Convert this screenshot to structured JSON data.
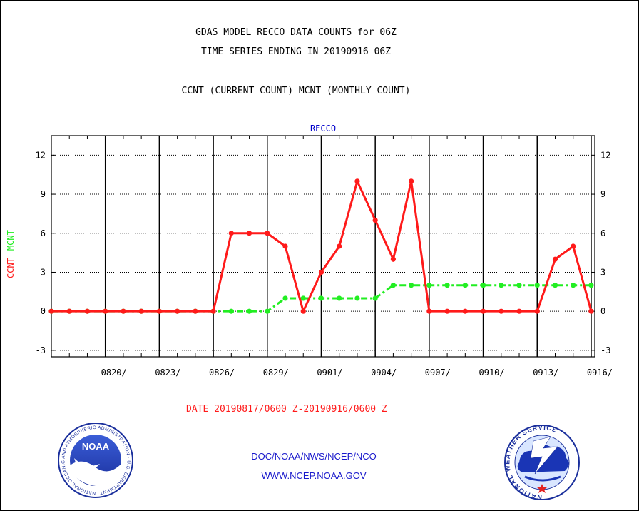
{
  "header": {
    "title_line1": "GDAS MODEL RECCO DATA COUNTS for 06Z",
    "title_line2": "TIME SERIES ENDING IN 20190916 06Z",
    "subtitle": "CCNT (CURRENT COUNT) MCNT (MONTHLY COUNT)"
  },
  "footer": {
    "date_range": "DATE 20190817/0600 Z-20190916/0600 Z",
    "org": "DOC/NOAA/NWS/NCEP/NCO",
    "url": "WWW.NCEP.NOAA.GOV",
    "noaa_logo_text": "NOAA",
    "noaa_ring_text": "NATIONAL OCEANIC AND ATMOSPHERIC ADMINISTRATION · U.S. DEPARTMENT OF COMMERCE ·",
    "nws_ring_text": "NATIONAL WEATHER SERVICE"
  },
  "colors": {
    "ccnt": "#ff1a1a",
    "mcnt": "#22ee22",
    "panel_title": "#0000cc",
    "footer_text": "#1a1acc",
    "date_text": "#ff1a1a"
  },
  "chart_data": {
    "type": "line",
    "panel_title": "RECCO",
    "ylabel_series": [
      "CCNT",
      "MCNT"
    ],
    "ylim": [
      -3.5,
      13.5
    ],
    "yticks": [
      -3,
      0,
      3,
      6,
      9,
      12
    ],
    "xlim": [
      0,
      30.2
    ],
    "x_ticks": [
      {
        "x": 3,
        "label": "0820/"
      },
      {
        "x": 6,
        "label": "0823/"
      },
      {
        "x": 9,
        "label": "0826/"
      },
      {
        "x": 12,
        "label": "0829/"
      },
      {
        "x": 15,
        "label": "0901/"
      },
      {
        "x": 18,
        "label": "0904/"
      },
      {
        "x": 21,
        "label": "0907/"
      },
      {
        "x": 24,
        "label": "0910/"
      },
      {
        "x": 27,
        "label": "0913/"
      },
      {
        "x": 30,
        "label": "0916/"
      }
    ],
    "grid": true,
    "series": [
      {
        "name": "CCNT",
        "style": "solid",
        "values": [
          0,
          0,
          0,
          0,
          0,
          0,
          0,
          0,
          0,
          0,
          6,
          6,
          6,
          5,
          0,
          3,
          5,
          10,
          7,
          4,
          10,
          0,
          0,
          0,
          0,
          0,
          0,
          0,
          4,
          5,
          0
        ]
      },
      {
        "name": "MCNT",
        "style": "dashdot",
        "values": [
          0,
          0,
          0,
          0,
          0,
          0,
          0,
          0,
          0,
          0,
          0,
          0,
          0,
          1,
          1,
          1,
          1,
          1,
          1,
          2,
          2,
          2,
          2,
          2,
          2,
          2,
          2,
          2,
          2,
          2,
          2
        ]
      }
    ]
  }
}
